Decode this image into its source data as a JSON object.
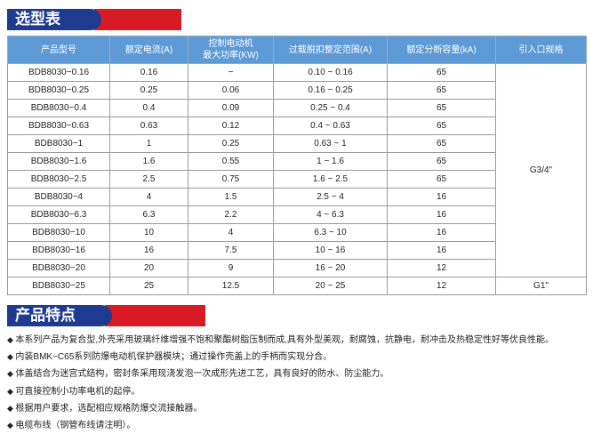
{
  "section1": {
    "title": "选型表"
  },
  "table": {
    "headers": [
      "产品型号",
      "额定电流(A)",
      "控制电动机\n最大功率(KW)",
      "过载脱扣整定范围(A)",
      "额定分断容量(kA)",
      "引入口规格"
    ],
    "header_power_line1": "控制电动机",
    "header_power_line2": "最大功率(KW)",
    "rows": [
      [
        "BDB8030−0.16",
        "0.16",
        "−",
        "0.10 ~ 0.16",
        "65"
      ],
      [
        "BDB8030−0.25",
        "0.25",
        "0.06",
        "0.16 ~ 0.25",
        "65"
      ],
      [
        "BDB8030−0.4",
        "0.4",
        "0.09",
        "0.25 ~ 0.4",
        "65"
      ],
      [
        "BDB8030−0.63",
        "0.63",
        "0.12",
        "0.4 ~ 0.63",
        "65"
      ],
      [
        "BDB8030−1",
        "1",
        "0.25",
        "0.63 ~ 1",
        "65"
      ],
      [
        "BDB8030−1.6",
        "1.6",
        "0.55",
        "1 ~ 1.6",
        "65"
      ],
      [
        "BDB8030−2.5",
        "2.5",
        "0.75",
        "1.6 ~ 2.5",
        "65"
      ],
      [
        "BDB8030−4",
        "4",
        "1.5",
        "2.5 ~ 4",
        "16"
      ],
      [
        "BDB8030−6.3",
        "6.3",
        "2.2",
        "4 ~ 6.3",
        "16"
      ],
      [
        "BDB8030−10",
        "10",
        "4",
        "6.3 ~ 10",
        "16"
      ],
      [
        "BDB8030−16",
        "16",
        "7.5",
        "10 ~ 16",
        "16"
      ],
      [
        "BDB8030−20",
        "20",
        "9",
        "16 ~ 20",
        "12"
      ],
      [
        "BDB8030−25",
        "25",
        "12.5",
        "20 ~ 25",
        "12"
      ]
    ],
    "entry_spec_group1": "G3/4\"",
    "entry_spec_group2": "G1\""
  },
  "section2": {
    "title": "产品特点"
  },
  "features": [
    "本系列产品为复合型,外壳采用玻璃纤维增强不饱和聚酯树脂压制而成,具有外型美观，耐腐蚀，抗静电，耐冲击及热稳定性好等优良性能。",
    "内装BMK−C65系列防爆电动机保护器模块；通过操作壳盖上的手柄而实现分合。",
    "体盖结合为迷宫式结构，密封条采用现浇发泡一次成形先进工艺，具有良好的防水、防尘能力。",
    "可直接控制小功率电机的起停。",
    "根据用户要求，选配相应规格防爆交流接触器。",
    "电缆布线（钢管布线请注明）。"
  ],
  "colors": {
    "banner_blue": "#1f3b8f",
    "banner_red": "#d81a24",
    "header_blue": "#5d9ad6"
  }
}
